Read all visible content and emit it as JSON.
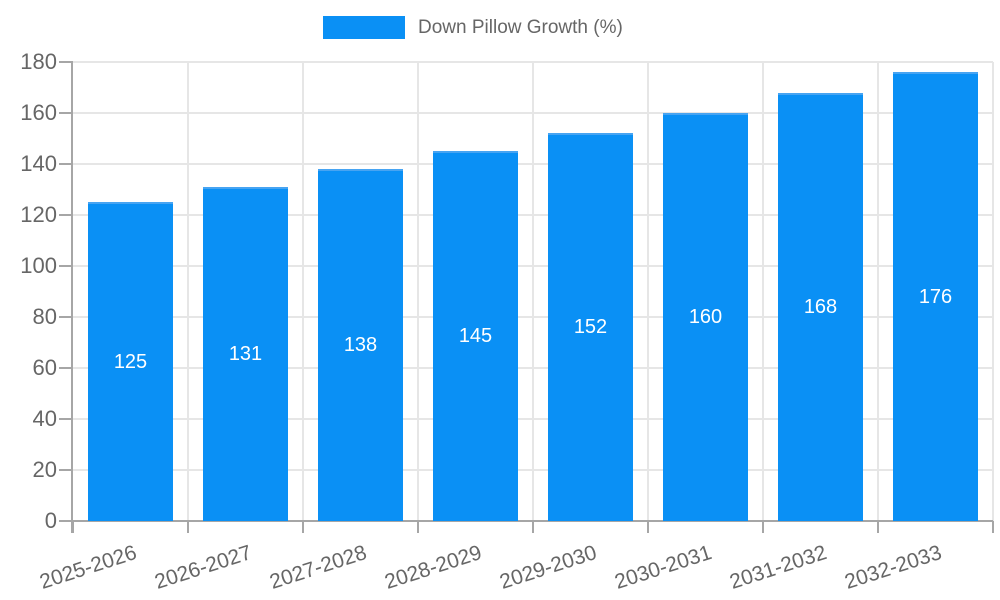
{
  "chart_data": {
    "type": "bar",
    "title": "",
    "legend_position": "top",
    "series_label": "Down Pillow Growth (%)",
    "categories": [
      "2025-2026",
      "2026-2027",
      "2027-2028",
      "2028-2029",
      "2029-2030",
      "2030-2031",
      "2031-2032",
      "2032-2033"
    ],
    "values": [
      125,
      131,
      138,
      145,
      152,
      160,
      168,
      176
    ],
    "xlabel": "",
    "ylabel": "",
    "ylim": [
      0,
      180
    ],
    "ytick_step": 20,
    "yticks": [
      0,
      20,
      40,
      60,
      80,
      100,
      120,
      140,
      160,
      180
    ],
    "grid": true,
    "value_labels_shown": true,
    "colors": {
      "bar_fill": "#0a90f5",
      "bar_border_top": "#47a4f2",
      "value_label_text": "#ffffff",
      "axis_line": "#a6a6a6",
      "gridline": "#e6e6e6",
      "tick_text": "#666666",
      "legend_text": "#666666",
      "background": "#ffffff"
    }
  }
}
